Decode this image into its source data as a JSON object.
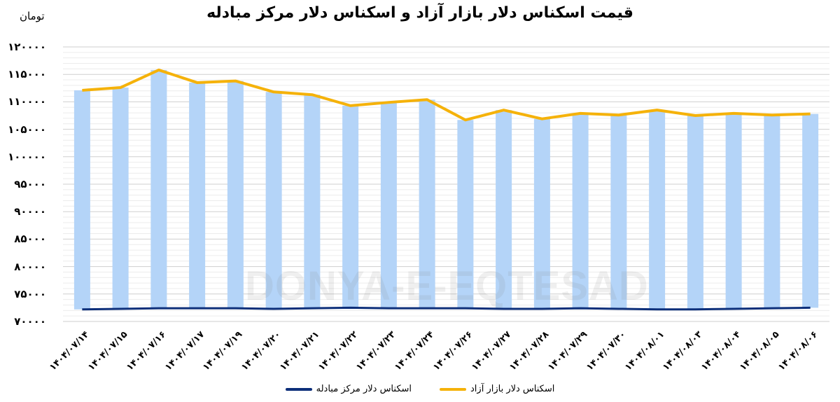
{
  "title": "قیمت اسکناس دلار بازار آزاد و اسکناس دلار مرکز مبادله",
  "unit_label": "تومان",
  "watermark": "DONYA-E-EQTESAD",
  "colors": {
    "bar": "#B4D4F8",
    "free_market_line": "#F5B20A",
    "exchange_center_line": "#0D2F7A",
    "grid_major": "#CFCFCF",
    "grid_minor": "#ECECEC"
  },
  "y_ticks": [
    "۱۲۰۰۰۰",
    "۱۱۵۰۰۰",
    "۱۱۰۰۰۰",
    "۱۰۵۰۰۰",
    "۱۰۰۰۰۰",
    "۹۵۰۰۰",
    "۹۰۰۰۰",
    "۸۵۰۰۰",
    "۸۰۰۰۰",
    "۷۵۰۰۰",
    "۷۰۰۰۰"
  ],
  "legend": [
    {
      "label": "اسکناس دلار بازار آزاد",
      "color": "#F5B20A"
    },
    {
      "label": "اسکناس دلار مرکز مبادله",
      "color": "#0D2F7A"
    }
  ],
  "chart_data": {
    "type": "bar+line",
    "title": "قیمت اسکناس دلار بازار آزاد و اسکناس دلار مرکز مبادله",
    "ylabel": "تومان",
    "xlabel": "",
    "ylim": [
      70000,
      120000
    ],
    "y_major_step": 5000,
    "y_minor_step": 1000,
    "grid": true,
    "legend_position": "bottom",
    "categories": [
      "۱۴۰۴/۰۷/۱۴",
      "۱۴۰۴/۰۷/۱۵",
      "۱۴۰۴/۰۷/۱۶",
      "۱۴۰۴/۰۷/۱۷",
      "۱۴۰۴/۰۷/۱۹",
      "۱۴۰۴/۰۷/۲۰",
      "۱۴۰۴/۰۷/۲۱",
      "۱۴۰۴/۰۷/۲۲",
      "۱۴۰۴/۰۷/۲۳",
      "۱۴۰۴/۰۷/۲۴",
      "۱۴۰۴/۰۷/۲۶",
      "۱۴۰۴/۰۷/۲۷",
      "۱۴۰۴/۰۷/۲۸",
      "۱۴۰۴/۰۷/۲۹",
      "۱۴۰۴/۰۷/۳۰",
      "۱۴۰۴/۰۸/۰۱",
      "۱۴۰۴/۰۸/۰۳",
      "۱۴۰۴/۰۸/۰۴",
      "۱۴۰۴/۰۸/۰۵",
      "۱۴۰۴/۰۸/۰۶"
    ],
    "series": [
      {
        "name": "اسکناس دلار بازار آزاد",
        "type": "bar+line",
        "values": [
          112100,
          112600,
          115800,
          113500,
          113800,
          111800,
          111300,
          109300,
          109900,
          110400,
          106700,
          108500,
          106900,
          107900,
          107600,
          108500,
          107500,
          107900,
          107600,
          107800
        ]
      },
      {
        "name": "اسکناس دلار مرکز مبادله",
        "type": "line",
        "values": [
          72200,
          72300,
          72400,
          72400,
          72400,
          72300,
          72400,
          72500,
          72400,
          72400,
          72400,
          72300,
          72300,
          72400,
          72300,
          72200,
          72200,
          72300,
          72400,
          72500
        ]
      }
    ]
  }
}
